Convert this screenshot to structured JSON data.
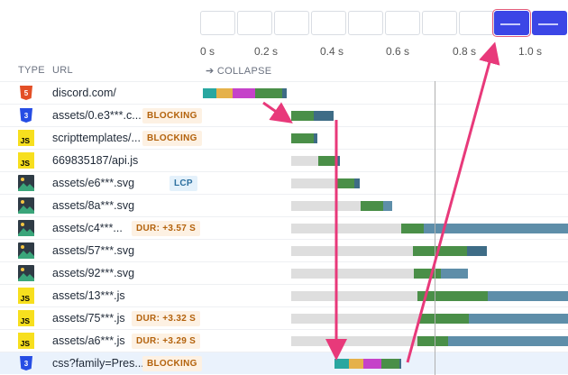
{
  "timeline": {
    "ticks": [
      "0 s",
      "0.2 s",
      "0.4 s",
      "0.6 s",
      "0.8 s",
      "1.0 s"
    ],
    "collapse_label": "➔ COLLAPSE"
  },
  "table": {
    "type_header": "TYPE",
    "url_header": "URL",
    "rows": [
      {
        "type_icon": "html5-icon",
        "url": "discord.com/",
        "badge": ""
      },
      {
        "type_icon": "css3-icon",
        "url": "assets/0.e3***.c...",
        "badge": "BLOCKING"
      },
      {
        "type_icon": "js-icon",
        "url": "scripttemplates/...",
        "badge": "BLOCKING"
      },
      {
        "type_icon": "js-icon",
        "url": "669835187/api.js",
        "badge": ""
      },
      {
        "type_icon": "image-icon",
        "url": "assets/e6***.svg",
        "badge": "LCP"
      },
      {
        "type_icon": "image-icon",
        "url": "assets/8a***.svg",
        "badge": ""
      },
      {
        "type_icon": "image-icon",
        "url": "assets/c4***...",
        "badge": "DUR: +3.57 S"
      },
      {
        "type_icon": "image-icon",
        "url": "assets/57***.svg",
        "badge": ""
      },
      {
        "type_icon": "image-icon",
        "url": "assets/92***.svg",
        "badge": ""
      },
      {
        "type_icon": "js-icon",
        "url": "assets/13***.js",
        "badge": ""
      },
      {
        "type_icon": "js-icon",
        "url": "assets/75***.js",
        "badge": "DUR: +3.32 S"
      },
      {
        "type_icon": "js-icon",
        "url": "assets/a6***.js",
        "badge": "DUR: +3.29 S"
      },
      {
        "type_icon": "css3-icon",
        "url": "css?family=Pres...",
        "badge": "BLOCKING"
      }
    ]
  },
  "colors": {
    "html": "#e34f26",
    "css": "#264de4",
    "js": "#f7df1e",
    "image": "#2f3b45",
    "arrow": "#e8397a"
  }
}
